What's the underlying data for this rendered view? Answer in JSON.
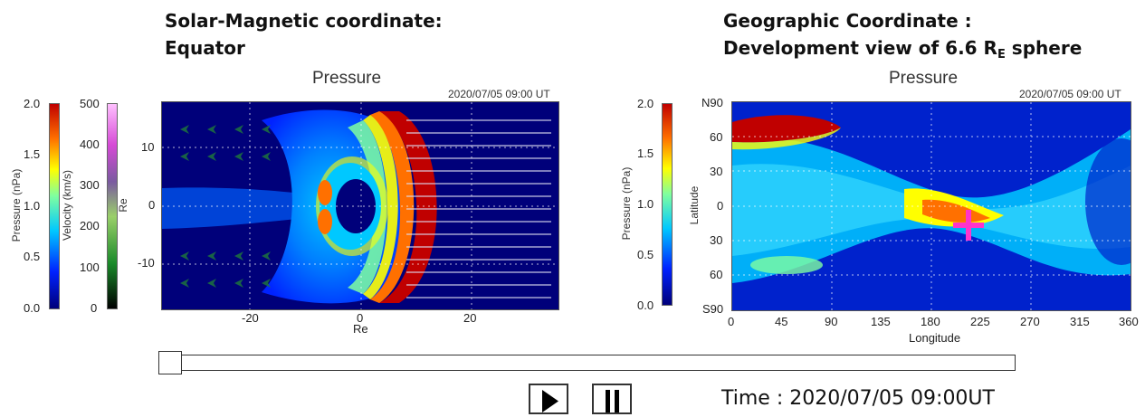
{
  "left_panel": {
    "heading_line1": "Solar-Magnetic coordinate:",
    "heading_line2": "Equator",
    "title": "Pressure",
    "timestamp": "2020/07/05 09:00 UT",
    "pressure_bar": {
      "label": "Pressure (nPa)",
      "ticks": [
        "2.0",
        "1.5",
        "1.0",
        "0.5",
        "0.0"
      ]
    },
    "velocity_bar": {
      "label": "Velocity (km/s)",
      "ticks": [
        "500",
        "400",
        "300",
        "200",
        "100",
        "0"
      ]
    },
    "x_ticks": [
      "-20",
      "0",
      "20"
    ],
    "y_ticks": [
      "10",
      "0",
      "-10"
    ],
    "xlabel": "Re",
    "ylabel": "Re"
  },
  "right_panel": {
    "heading_line1": "Geographic Coordinate :",
    "heading_line2_pre": "Development view of 6.6 R",
    "heading_sub": "E",
    "heading_line2_post": " sphere",
    "title": "Pressure",
    "timestamp": "2020/07/05 09:00 UT",
    "pressure_bar": {
      "label": "Pressure (nPa)",
      "ticks": [
        "2.0",
        "1.5",
        "1.0",
        "0.5",
        "0.0"
      ]
    },
    "x_ticks": [
      "0",
      "45",
      "90",
      "135",
      "180",
      "225",
      "270",
      "315",
      "360"
    ],
    "y_ticks": [
      "N90",
      "60",
      "30",
      "0",
      "30",
      "60",
      "S90"
    ],
    "xlabel": "Longitude",
    "ylabel": "Latitude"
  },
  "controls": {
    "slider_position": 0.0,
    "play_icon": "play-icon",
    "pause_icon": "pause-icon",
    "time_text": "Time : 2020/07/05  09:00UT"
  },
  "colors": {
    "pressure_scale": [
      "#00007a",
      "#0022ff",
      "#00c8ff",
      "#7fffa0",
      "#ffff00",
      "#ff7000",
      "#c00000"
    ],
    "marker": "#ff33cc"
  }
}
